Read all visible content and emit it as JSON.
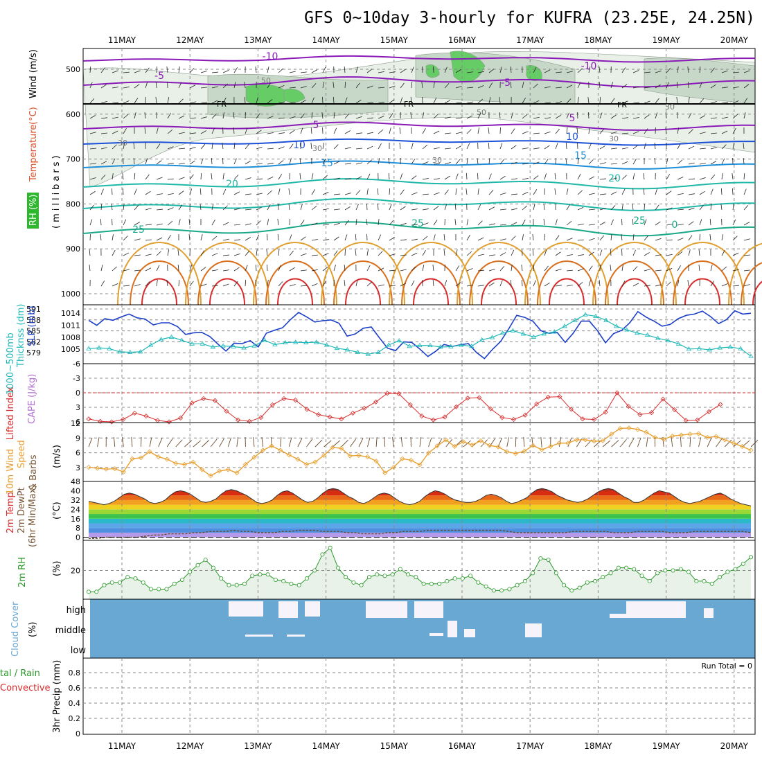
{
  "title": "GFS 0~10day 3-hourly for KUFRA (23.25E, 24.25N)",
  "dates": [
    "11MAY",
    "12MAY",
    "13MAY",
    "14MAY",
    "15MAY",
    "16MAY",
    "17MAY",
    "18MAY",
    "19MAY",
    "20MAY"
  ],
  "panel_labels": {
    "upper_rh": "RH (%)",
    "upper_temp": "Temperature",
    "upper_temp_unit": "(°C)",
    "upper_wind": "Wind (m/s)",
    "upper_axis": "(millibars)",
    "thickness": "1000~500mb",
    "thickness2": "Thicknss (dm)",
    "slp": "SLP (mb)",
    "lifted": "Lifted Index",
    "cape": "CAPE (J/kg)",
    "wind10": "10m Wind",
    "wind10_b": "Speed",
    "wind10_c": "& Barbs",
    "wind10_unit": "(m/s)",
    "temp2": "2m Temp",
    "dew2": "2m DewPt",
    "minmax": "(6hr Min/Max)",
    "temp_unit": "(°C)",
    "rh2": "2m RH",
    "rh2_unit": "(%)",
    "cloud": "Cloud Cover",
    "cloud_unit": "(%)",
    "precip_a": "tal / Rain",
    "precip_b": "Convective",
    "precip_unit": "3hr Precip (mm)",
    "run_total": "Run Total = 0"
  },
  "contour_labels": {
    "temp": [
      "-10",
      "-5",
      "-10",
      "-5",
      "5",
      "5",
      "10",
      "10",
      "15",
      "15",
      "20",
      "20",
      "25",
      "25",
      "25",
      "0"
    ],
    "freezing": "FR",
    "rh": [
      "30",
      "30",
      "30",
      "30",
      "50",
      "50",
      "30"
    ]
  },
  "colors": {
    "rh_light": "#e8f0e8",
    "rh_mid": "#c8d8c8",
    "rh_dark": "#a8b8a8",
    "rh_green": "#66cc66",
    "slp": "#1c3fc8",
    "thickness": "#1fb8b8",
    "lifted": "#d82c2c",
    "cape": "#b070d0",
    "wind10": "#e8a030",
    "rh2": "#2a9a2a",
    "cloud": "#6aa8d4",
    "precip_green": "#2a9a2a",
    "precip_red": "#d82c2c"
  },
  "chart_data": [
    {
      "type": "contour",
      "name": "upper-air",
      "y_axis": "pressure",
      "yticks": [
        500,
        600,
        700,
        800,
        900,
        1000
      ],
      "ylim": [
        450,
        1020
      ]
    },
    {
      "type": "line",
      "name": "slp-thickness",
      "left_ticks": [
        "591",
        "588",
        "585",
        "582",
        "579"
      ],
      "right_ticks": [
        "1014",
        "1011",
        "1008",
        "1005"
      ],
      "series": [
        {
          "name": "SLP",
          "values": [
            1012.6,
            1011.4,
            1013.0,
            1012.6,
            1013.4,
            1014.1,
            1013.2,
            1012.9,
            1011.5,
            1012.0,
            1012.0,
            1011.1,
            1009.2,
            1009.6,
            1009.7,
            1008.7,
            1006.9,
            1005.2,
            1007.1,
            1007.0,
            1007.7,
            1006.2,
            1009.5,
            1010.2,
            1010.8,
            1012.8,
            1014.5,
            1013.4,
            1012.2,
            1012.5,
            1012.7,
            1011.9,
            1008.8,
            1009.3,
            1010.7,
            1011.0,
            1008.4,
            1005.9,
            1005.3,
            1007.4,
            1007.3,
            1005.7,
            1003.9,
            1005.2,
            1006.8,
            1006.3,
            1006.7,
            1007.0,
            1004.9,
            1003.4,
            1005.6,
            1007.5,
            1010.5,
            1013.8,
            1013.3,
            1012.4,
            1010.1,
            1009.5,
            1009.7,
            1007.3,
            1009.5,
            1012.4,
            1012.4,
            1010.1,
            1007.2,
            1009.4,
            1010.2,
            1012.0,
            1014.7,
            1013.4,
            1012.4,
            1011.2,
            1011.6,
            1013.0,
            1013.8,
            1014.1,
            1014.8,
            1013.5,
            1011.8,
            1012.8,
            1014.9,
            1014.1,
            1014.3
          ]
        },
        {
          "name": "Thickness",
          "values": [
            581.4,
            581.6,
            581.4,
            580.6,
            580.5,
            580.6,
            582.3,
            583.7,
            584.3,
            583.5,
            582.6,
            582.6,
            581.8,
            582.1,
            581.9,
            581.6,
            582.1,
            583.5,
            582.4,
            582.9,
            583.0,
            582.9,
            583.0,
            582.3,
            581.5,
            581.1,
            580.5,
            580.0,
            580.5,
            582.3,
            583.4,
            582.0,
            582.2,
            582.2,
            581.8,
            581.9,
            582.3,
            582.0,
            583.6,
            584.2,
            585.3,
            585.9,
            585.1,
            584.3,
            585.1,
            585.6,
            587.0,
            588.5,
            589.9,
            589.5,
            588.5,
            587.0,
            586.1,
            585.3,
            584.8,
            584.0,
            583.4,
            582.6,
            581.3,
            581.4,
            581.1,
            581.6,
            581.8,
            581.4,
            579.5
          ]
        }
      ]
    },
    {
      "type": "line",
      "name": "lifted-index-cape",
      "yticks": [
        "-6",
        "-3",
        "0",
        "3",
        "6"
      ],
      "series": [
        {
          "name": "Lifted Index",
          "values": [
            5.4,
            5.9,
            6.0,
            5.5,
            4.2,
            4.8,
            5.7,
            6.0,
            5.2,
            2.1,
            1.2,
            1.6,
            3.8,
            5.6,
            5.9,
            5.1,
            2.5,
            1.2,
            1.5,
            3.4,
            4.5,
            5.0,
            5.4,
            4.2,
            3.2,
            1.9,
            0.1,
            0.2,
            2.5,
            4.8,
            5.6,
            5.0,
            2.9,
            1.1,
            1.0,
            3.3,
            5.1,
            5.5,
            4.6,
            2.3,
            0.9,
            0.8,
            3.4,
            5.4,
            5.5,
            4.0,
            0.0,
            2.8,
            4.5,
            4.1,
            1.3,
            3.5,
            5.7,
            5.6,
            3.9,
            2.4
          ]
        }
      ]
    },
    {
      "type": "line",
      "name": "wind10m",
      "yticks": [
        "12",
        "9",
        "6",
        "3"
      ],
      "series": [
        {
          "name": "Speed",
          "values": [
            3.0,
            2.8,
            2.6,
            2.7,
            2.0,
            4.8,
            5.0,
            6.3,
            5.2,
            4.7,
            3.8,
            3.6,
            4.1,
            2.5,
            1.2,
            2.2,
            2.5,
            1.8,
            3.6,
            5.1,
            6.6,
            7.5,
            6.6,
            5.6,
            4.7,
            3.6,
            4.1,
            5.5,
            7.2,
            7.0,
            5.4,
            5.5,
            5.2,
            4.3,
            1.8,
            3.0,
            4.8,
            4.5,
            3.5,
            6.0,
            7.5,
            8.8,
            7.4,
            8.4,
            7.7,
            8.6,
            7.6,
            7.3,
            6.3,
            5.9,
            6.4,
            7.6,
            6.7,
            7.4,
            8.1,
            8.1,
            8.8,
            8.8,
            8.5,
            8.6,
            10.0,
            11.2,
            11.3,
            11.0,
            10.4,
            9.3,
            8.9,
            9.6,
            9.8,
            10.0,
            10.1,
            9.3,
            9.5,
            8.8,
            8.1,
            7.4,
            6.6
          ]
        }
      ]
    },
    {
      "type": "area",
      "name": "temp2m",
      "yticks": [
        "48",
        "40",
        "32",
        "24",
        "16",
        "8",
        "0"
      ],
      "series": [
        {
          "name": "2m Temp",
          "values": [
            31,
            30,
            29,
            28,
            29,
            31,
            34,
            37,
            38,
            37,
            35,
            33,
            30,
            29,
            30,
            32,
            36,
            39,
            40,
            39,
            37,
            34,
            31,
            30,
            31,
            33,
            37,
            40,
            41,
            40,
            38,
            36,
            33,
            30,
            29,
            30,
            32,
            36,
            39,
            40,
            38,
            35,
            32,
            30,
            31,
            34,
            38,
            41,
            42,
            41,
            38,
            35,
            33,
            30,
            29,
            31,
            34,
            37,
            38,
            37,
            34,
            31,
            29,
            28,
            29,
            31,
            35,
            38,
            40,
            39,
            37,
            34,
            32,
            31,
            30,
            30,
            31,
            33,
            36,
            37,
            36,
            34,
            31,
            29,
            30,
            32,
            34,
            38,
            41,
            42,
            41,
            39,
            36,
            34,
            32,
            31,
            30,
            31,
            33,
            36,
            39,
            41,
            42,
            41,
            38,
            35,
            33,
            30,
            30,
            32,
            35,
            38,
            40,
            39,
            38,
            35,
            32,
            30,
            29,
            30,
            31,
            33,
            35,
            37,
            38,
            36,
            33,
            31,
            29,
            28,
            27
          ]
        },
        {
          "name": "2m DewPt",
          "values": [
            -1,
            -1,
            0,
            0,
            0,
            0,
            0,
            1,
            2,
            2,
            3,
            3,
            3,
            4,
            4,
            5,
            5,
            5,
            6,
            5,
            5,
            4,
            4,
            4,
            5,
            5,
            6,
            6,
            6,
            5,
            5,
            5,
            4,
            4,
            3,
            3,
            3,
            4,
            4,
            5,
            5,
            5,
            6,
            6,
            6,
            6,
            6,
            6,
            6,
            6,
            6,
            6,
            5,
            4,
            4,
            4,
            4,
            4,
            4,
            4,
            5,
            5,
            5,
            5,
            5,
            4,
            4,
            4,
            5,
            5,
            5,
            5,
            4,
            4,
            4,
            5,
            5,
            5,
            5,
            5,
            5,
            5,
            4
          ]
        }
      ]
    },
    {
      "type": "line",
      "name": "rh2m",
      "yticks": [
        "20"
      ],
      "series": [
        {
          "name": "2m RH",
          "values": [
            4,
            4,
            9,
            11,
            11,
            15,
            14,
            11,
            6,
            6,
            6,
            10,
            13,
            19,
            24,
            28,
            22,
            14,
            9,
            9,
            10,
            16,
            17,
            17,
            13,
            12,
            10,
            9,
            14,
            20,
            32,
            37,
            22,
            15,
            11,
            9,
            15,
            17,
            16,
            17,
            21,
            17,
            15,
            10,
            10,
            10,
            12,
            14,
            14,
            16,
            11,
            8,
            5,
            5,
            6,
            9,
            12,
            18,
            29,
            28,
            18,
            9,
            5,
            7,
            11,
            12,
            15,
            18,
            22,
            22,
            21,
            16,
            12,
            18,
            20,
            20,
            21,
            19,
            12,
            12,
            10,
            15,
            19,
            21,
            25,
            30
          ]
        }
      ]
    },
    {
      "type": "bar",
      "name": "cloud-cover",
      "levels": [
        "high",
        "middle",
        "low"
      ]
    },
    {
      "type": "bar",
      "name": "precip",
      "yticks": [
        "0.8",
        "0.6",
        "0.4",
        "0.2",
        "0"
      ]
    }
  ]
}
